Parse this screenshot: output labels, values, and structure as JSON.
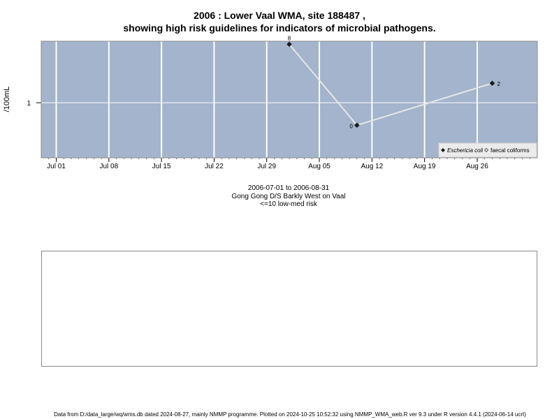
{
  "title_line1": "2006 : Lower Vaal WMA, site 188487 ,",
  "title_line2": "showing high risk guidelines for indicators of microbial pathogens.",
  "caption": {
    "line1": "2006-07-01 to 2006-08-31",
    "line2": "Gong Gong D/S Barkly West on Vaal",
    "line3": "<=10 low-med risk"
  },
  "footer": "Data from D:/data_large/wq/wms.db dated 2024-08-27, mainly NMMP programme. Plotted on 2024-10-25 10:52:32 using NMMP_WMA_web.R ver 9.3 under R version 4.4.1 (2024-06-14 ucrt)",
  "chart_data": {
    "type": "line",
    "ylabel": "/100mL",
    "xlabel": "",
    "x_ticks": [
      "Jul 01",
      "Jul 08",
      "Jul 15",
      "Jul 22",
      "Jul 29",
      "Aug 05",
      "Aug 12",
      "Aug 19",
      "Aug 26"
    ],
    "y_ticks": [
      {
        "value": 1,
        "label": "1"
      }
    ],
    "xlim": [
      "2006-06-29",
      "2006-09-03"
    ],
    "ylim_log10": [
      -0.85,
      0.95
    ],
    "grid": true,
    "background": "#a3b4cc",
    "legend": {
      "position": "bottom-right",
      "entries": [
        {
          "label": "Eschericia coli",
          "marker": "filled-diamond",
          "italic": true
        },
        {
          "label": "faecal coliforms",
          "marker": "open-diamond",
          "italic": false
        }
      ]
    },
    "series": [
      {
        "name": "Eschericia coli",
        "points": [
          {
            "x": "2006-08-01",
            "y": 8,
            "label": "8"
          },
          {
            "x": "2006-08-10",
            "y": 0.45,
            "label": "0"
          },
          {
            "x": "2006-08-28",
            "y": 2,
            "label": "2"
          }
        ]
      }
    ]
  }
}
